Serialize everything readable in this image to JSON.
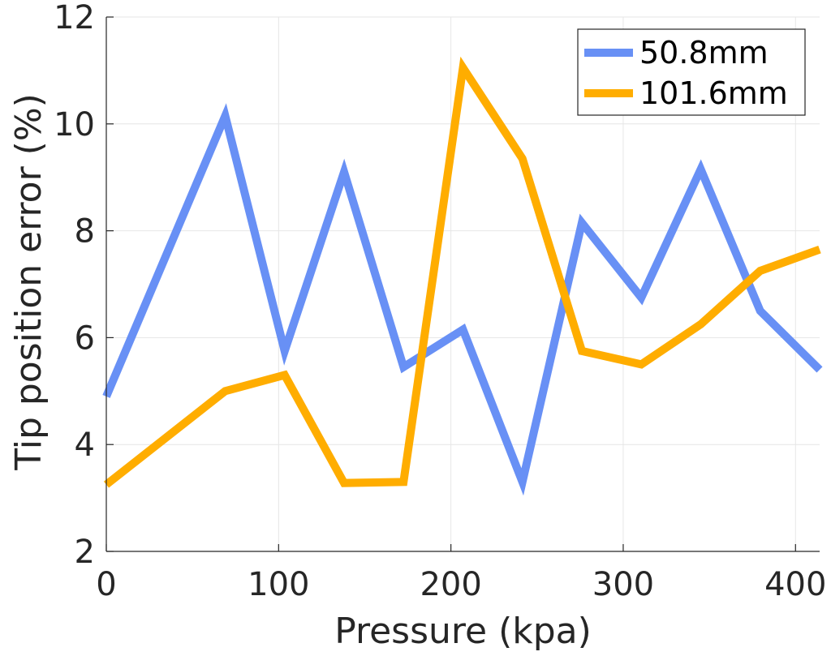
{
  "chart_data": {
    "type": "line",
    "title": "",
    "xlabel": "Pressure (kpa)",
    "ylabel": "Tip position error (%)",
    "xlim": [
      0,
      414
    ],
    "ylim": [
      2,
      12
    ],
    "xticks": [
      0,
      100,
      200,
      300,
      400
    ],
    "yticks": [
      2,
      4,
      6,
      8,
      10,
      12
    ],
    "xtick_labels": [
      "0",
      "100",
      "200",
      "300",
      "400"
    ],
    "ytick_labels": [
      "2",
      "4",
      "6",
      "8",
      "10",
      "12"
    ],
    "grid": true,
    "legend_position": "top-right",
    "x": [
      0,
      69,
      103.5,
      138,
      172.5,
      207,
      241.5,
      276,
      310.5,
      345,
      379.5,
      414
    ],
    "series": [
      {
        "name": "50.8mm",
        "color": "#6890f5",
        "values": [
          4.9,
          10.15,
          5.75,
          9.1,
          5.45,
          6.15,
          3.3,
          8.15,
          6.75,
          9.15,
          6.5,
          5.4
        ]
      },
      {
        "name": "101.6mm",
        "color": "#ffad00",
        "values": [
          3.25,
          5.0,
          5.3,
          3.28,
          3.3,
          11.05,
          9.35,
          5.75,
          5.5,
          6.25,
          7.25,
          7.65
        ]
      }
    ]
  }
}
